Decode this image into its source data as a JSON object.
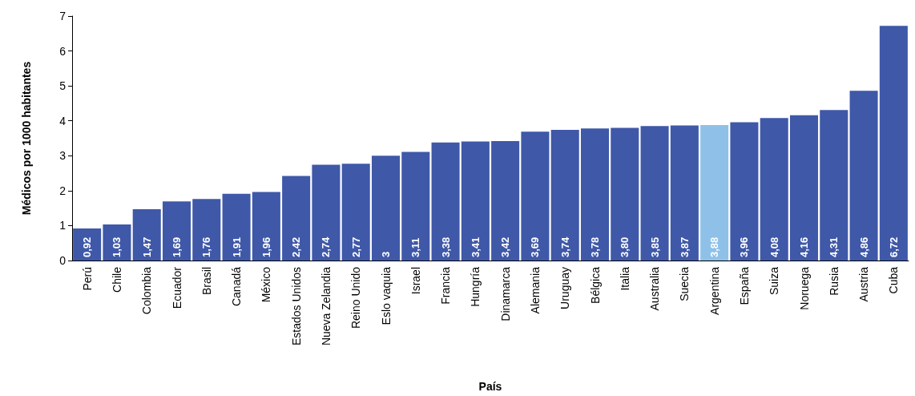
{
  "chart_data": {
    "type": "bar",
    "xlabel": "País",
    "ylabel": "Médicos por 1000 habitantes",
    "categories": [
      "Perú",
      "Chile",
      "Colombia",
      "Ecuador",
      "Brasil",
      "Canadá",
      "México",
      "Estados Unidos",
      "Nueva Zelandia",
      "Reino Unido",
      "Eslo vaquia",
      "Israel",
      "Francia",
      "Hungría",
      "Dinamarca",
      "Alemania",
      "Uruguay",
      "Bélgica",
      "Italia",
      "Australia",
      "Suecia",
      "Argentina",
      "España",
      "Suiza",
      "Noruega",
      "Rusia",
      "Austria",
      "Cuba"
    ],
    "values": [
      0.92,
      1.03,
      1.47,
      1.69,
      1.76,
      1.91,
      1.96,
      2.42,
      2.74,
      2.77,
      3,
      3.11,
      3.38,
      3.41,
      3.42,
      3.69,
      3.74,
      3.78,
      3.8,
      3.85,
      3.87,
      3.88,
      3.96,
      4.08,
      4.16,
      4.31,
      4.86,
      6.72
    ],
    "value_labels": [
      "0,92",
      "1,03",
      "1,47",
      "1,69",
      "1,76",
      "1,91",
      "1,96",
      "2,42",
      "2,74",
      "2,77",
      "3",
      "3,11",
      "3,38",
      "3,41",
      "3,42",
      "3,69",
      "3,74",
      "3,78",
      "3,80",
      "3,85",
      "3,87",
      "3,88",
      "3,96",
      "4,08",
      "4,16",
      "4,31",
      "4,86",
      "6,72"
    ],
    "colors": [
      "#3f58a8",
      "#3f58a8",
      "#3f58a8",
      "#3f58a8",
      "#3f58a8",
      "#3f58a8",
      "#3f58a8",
      "#3f58a8",
      "#3f58a8",
      "#3f58a8",
      "#3f58a8",
      "#3f58a8",
      "#3f58a8",
      "#3f58a8",
      "#3f58a8",
      "#3f58a8",
      "#3f58a8",
      "#3f58a8",
      "#3f58a8",
      "#3f58a8",
      "#3f58a8",
      "#8fc1e8",
      "#3f58a8",
      "#3f58a8",
      "#3f58a8",
      "#3f58a8",
      "#3f58a8",
      "#3f58a8"
    ],
    "ylim": [
      0,
      7
    ],
    "yticks": [
      0,
      1,
      2,
      3,
      4,
      5,
      6,
      7
    ],
    "grid": false
  }
}
